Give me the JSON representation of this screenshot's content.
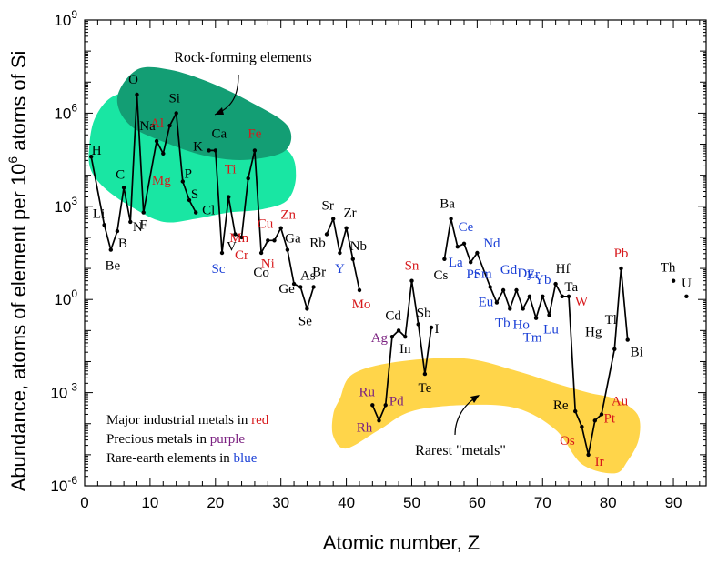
{
  "colors": {
    "red": "#d7191c",
    "purple": "#7b2181",
    "blue": "#1a3fd6",
    "black": "#000000",
    "rock_light": "#19e6a3",
    "rock_dark": "#139e74",
    "rare_yellow": "#ffd54a"
  },
  "chart_data": {
    "type": "line",
    "xlabel": "Atomic number, Z",
    "ylabel_main": "Abundance, atoms of element per 10",
    "ylabel_sup": "6",
    "ylabel_end": " atoms of Si",
    "xlim": [
      0,
      95
    ],
    "ylim_log10": [
      -6,
      9
    ],
    "x_ticks": [
      "0",
      "10",
      "20",
      "30",
      "40",
      "50",
      "60",
      "70",
      "80",
      "90"
    ],
    "y_ticks": [
      {
        "base": "10",
        "exp": "-6",
        "value": -6
      },
      {
        "base": "10",
        "exp": "-3",
        "value": -3
      },
      {
        "base": "10",
        "exp": "0",
        "value": 0
      },
      {
        "base": "10",
        "exp": "3",
        "value": 3
      },
      {
        "base": "10",
        "exp": "6",
        "value": 6
      },
      {
        "base": "10",
        "exp": "9",
        "value": 9
      }
    ],
    "scale_y": "log",
    "groups": [
      {
        "label": "Rock-forming elements"
      },
      {
        "label": "Rarest \"metals\""
      }
    ],
    "legend_notes": [
      {
        "text": "Major industrial metals in ",
        "highlight": "red",
        "cls": "red"
      },
      {
        "text": "Precious metals in ",
        "highlight": "purple",
        "cls": "purple"
      },
      {
        "text": "Rare-earth elements in ",
        "highlight": "blue",
        "cls": "blue"
      }
    ],
    "segments": [
      [
        [
          1,
          4.6
        ],
        [
          3,
          2.4
        ],
        [
          4,
          1.6
        ],
        [
          5,
          2.2
        ],
        [
          6,
          3.6
        ],
        [
          7,
          2.5
        ],
        [
          8,
          6.6
        ],
        [
          9,
          2.8
        ],
        [
          11,
          5.1
        ],
        [
          12,
          4.7
        ],
        [
          13,
          5.6
        ],
        [
          14,
          6.0
        ],
        [
          15,
          3.8
        ],
        [
          16,
          3.2
        ],
        [
          17,
          2.8
        ]
      ],
      [
        [
          19,
          4.8
        ],
        [
          20,
          4.8
        ],
        [
          21,
          1.5
        ],
        [
          22,
          3.3
        ],
        [
          23,
          2.1
        ],
        [
          24,
          2.0
        ],
        [
          25,
          3.9
        ],
        [
          26,
          4.8
        ],
        [
          27,
          1.5
        ],
        [
          28,
          1.9
        ],
        [
          29,
          1.9
        ],
        [
          30,
          2.3
        ],
        [
          31,
          1.6
        ],
        [
          32,
          0.5
        ],
        [
          33,
          0.4
        ],
        [
          34,
          -0.3
        ],
        [
          35,
          0.4
        ]
      ],
      [
        [
          37,
          2.1
        ],
        [
          38,
          2.6
        ],
        [
          39,
          1.5
        ],
        [
          40,
          2.3
        ],
        [
          41,
          1.3
        ],
        [
          42,
          0.3
        ]
      ],
      [
        [
          44,
          -3.4
        ],
        [
          45,
          -3.9
        ],
        [
          46,
          -3.4
        ],
        [
          47,
          -1.2
        ],
        [
          48,
          -1.0
        ],
        [
          49,
          -1.2
        ],
        [
          50,
          0.6
        ],
        [
          51,
          -0.8
        ],
        [
          52,
          -2.4
        ],
        [
          53,
          -0.9
        ]
      ],
      [
        [
          55,
          1.3
        ],
        [
          56,
          2.6
        ],
        [
          57,
          1.7
        ],
        [
          58,
          1.8
        ],
        [
          59,
          1.2
        ],
        [
          60,
          1.5
        ],
        [
          62,
          0.4
        ],
        [
          63,
          -0.1
        ],
        [
          64,
          0.3
        ],
        [
          65,
          -0.3
        ],
        [
          66,
          0.3
        ],
        [
          67,
          -0.3
        ],
        [
          68,
          0.1
        ],
        [
          69,
          -0.6
        ],
        [
          70,
          0.1
        ],
        [
          71,
          -0.5
        ],
        [
          72,
          0.5
        ],
        [
          73,
          0.1
        ],
        [
          74,
          0.1
        ],
        [
          75,
          -3.6
        ],
        [
          76,
          -4.1
        ],
        [
          77,
          -5.0
        ],
        [
          78,
          -3.9
        ],
        [
          79,
          -3.7
        ],
        [
          81,
          -1.6
        ],
        [
          82,
          1.0
        ],
        [
          83,
          -1.3
        ]
      ],
      [
        [
          90,
          0.6
        ]
      ],
      [
        [
          92,
          0.1
        ]
      ]
    ],
    "elements": [
      {
        "sym": "H",
        "z": 1,
        "v": 4.6,
        "c": "black",
        "dx": 6,
        "dy": -2
      },
      {
        "sym": "Li",
        "z": 3,
        "v": 2.4,
        "c": "black",
        "dx": -6,
        "dy": -8
      },
      {
        "sym": "Be",
        "z": 4,
        "v": 1.6,
        "c": "black",
        "dx": 2,
        "dy": 22
      },
      {
        "sym": "B",
        "z": 5,
        "v": 2.2,
        "c": "black",
        "dx": 6,
        "dy": 18
      },
      {
        "sym": "C",
        "z": 6,
        "v": 3.6,
        "c": "black",
        "dx": -4,
        "dy": -10
      },
      {
        "sym": "N",
        "z": 7,
        "v": 2.5,
        "c": "black",
        "dx": 8,
        "dy": 10
      },
      {
        "sym": "O",
        "z": 8,
        "v": 6.6,
        "c": "black",
        "dx": -4,
        "dy": -12
      },
      {
        "sym": "F",
        "z": 9,
        "v": 2.8,
        "c": "black",
        "dx": 0,
        "dy": 18
      },
      {
        "sym": "Na",
        "z": 11,
        "v": 5.1,
        "c": "black",
        "dx": -10,
        "dy": -12
      },
      {
        "sym": "Mg",
        "z": 12,
        "v": 4.7,
        "c": "red",
        "dx": -2,
        "dy": 34
      },
      {
        "sym": "Al",
        "z": 13,
        "v": 5.6,
        "c": "red",
        "dx": -14,
        "dy": 2
      },
      {
        "sym": "Si",
        "z": 14,
        "v": 6.0,
        "c": "black",
        "dx": -2,
        "dy": -12
      },
      {
        "sym": "P",
        "z": 15,
        "v": 3.8,
        "c": "black",
        "dx": 6,
        "dy": -4
      },
      {
        "sym": "S",
        "z": 16,
        "v": 3.2,
        "c": "black",
        "dx": 6,
        "dy": -2
      },
      {
        "sym": "Cl",
        "z": 17,
        "v": 2.8,
        "c": "black",
        "dx": 14,
        "dy": 2
      },
      {
        "sym": "K",
        "z": 19,
        "v": 4.8,
        "c": "black",
        "dx": -12,
        "dy": 0
      },
      {
        "sym": "Ca",
        "z": 20,
        "v": 4.8,
        "c": "black",
        "dx": 4,
        "dy": -14
      },
      {
        "sym": "Sc",
        "z": 21,
        "v": 1.5,
        "c": "blue",
        "dx": -4,
        "dy": 22
      },
      {
        "sym": "Ti",
        "z": 22,
        "v": 3.3,
        "c": "red",
        "dx": 2,
        "dy": -26
      },
      {
        "sym": "V",
        "z": 23,
        "v": 2.1,
        "c": "black",
        "dx": -4,
        "dy": 18
      },
      {
        "sym": "Cr",
        "z": 24,
        "v": 2.0,
        "c": "red",
        "dx": 0,
        "dy": 24
      },
      {
        "sym": "Mn",
        "z": 25,
        "v": 3.9,
        "c": "red",
        "dx": -10,
        "dy": 70
      },
      {
        "sym": "Fe",
        "z": 26,
        "v": 4.8,
        "c": "red",
        "dx": 0,
        "dy": -14
      },
      {
        "sym": "Co",
        "z": 27,
        "v": 1.5,
        "c": "black",
        "dx": 0,
        "dy": 26
      },
      {
        "sym": "Ni",
        "z": 28,
        "v": 1.9,
        "c": "red",
        "dx": 0,
        "dy": 30
      },
      {
        "sym": "Cu",
        "z": 29,
        "v": 1.9,
        "c": "red",
        "dx": -10,
        "dy": -14
      },
      {
        "sym": "Zn",
        "z": 30,
        "v": 2.3,
        "c": "red",
        "dx": 8,
        "dy": -10
      },
      {
        "sym": "Ga",
        "z": 31,
        "v": 1.6,
        "c": "black",
        "dx": 6,
        "dy": -8
      },
      {
        "sym": "Ge",
        "z": 32,
        "v": 0.5,
        "c": "black",
        "dx": -8,
        "dy": 10
      },
      {
        "sym": "As",
        "z": 33,
        "v": 0.4,
        "c": "black",
        "dx": 8,
        "dy": -8
      },
      {
        "sym": "Se",
        "z": 34,
        "v": -0.3,
        "c": "black",
        "dx": -2,
        "dy": 18
      },
      {
        "sym": "Br",
        "z": 35,
        "v": 0.4,
        "c": "black",
        "dx": 6,
        "dy": -12
      },
      {
        "sym": "Rb",
        "z": 37,
        "v": 2.1,
        "c": "black",
        "dx": -10,
        "dy": 14
      },
      {
        "sym": "Sr",
        "z": 38,
        "v": 2.6,
        "c": "black",
        "dx": -6,
        "dy": -10
      },
      {
        "sym": "Y",
        "z": 39,
        "v": 1.5,
        "c": "blue",
        "dx": 0,
        "dy": 22
      },
      {
        "sym": "Zr",
        "z": 40,
        "v": 2.3,
        "c": "black",
        "dx": 4,
        "dy": -12
      },
      {
        "sym": "Nb",
        "z": 41,
        "v": 1.3,
        "c": "black",
        "dx": 6,
        "dy": -10
      },
      {
        "sym": "Mo",
        "z": 42,
        "v": 0.3,
        "c": "red",
        "dx": 2,
        "dy": 20
      },
      {
        "sym": "Ru",
        "z": 44,
        "v": -3.4,
        "c": "purple",
        "dx": -6,
        "dy": -10
      },
      {
        "sym": "Rh",
        "z": 45,
        "v": -3.9,
        "c": "purple",
        "dx": -16,
        "dy": 12
      },
      {
        "sym": "Pd",
        "z": 46,
        "v": -3.4,
        "c": "purple",
        "dx": 12,
        "dy": 0
      },
      {
        "sym": "Ag",
        "z": 47,
        "v": -1.2,
        "c": "purple",
        "dx": -14,
        "dy": 6
      },
      {
        "sym": "Cd",
        "z": 48,
        "v": -1.0,
        "c": "black",
        "dx": -6,
        "dy": -12
      },
      {
        "sym": "In",
        "z": 49,
        "v": -1.2,
        "c": "black",
        "dx": 0,
        "dy": 18
      },
      {
        "sym": "Sn",
        "z": 50,
        "v": 0.6,
        "c": "red",
        "dx": 0,
        "dy": -12
      },
      {
        "sym": "Sb",
        "z": 51,
        "v": -0.8,
        "c": "black",
        "dx": 6,
        "dy": -8
      },
      {
        "sym": "Te",
        "z": 52,
        "v": -2.4,
        "c": "black",
        "dx": 0,
        "dy": 20
      },
      {
        "sym": "I",
        "z": 53,
        "v": -0.9,
        "c": "black",
        "dx": 6,
        "dy": 6
      },
      {
        "sym": "Cs",
        "z": 55,
        "v": 1.3,
        "c": "black",
        "dx": -4,
        "dy": 22
      },
      {
        "sym": "Ba",
        "z": 56,
        "v": 2.6,
        "c": "black",
        "dx": -4,
        "dy": -12
      },
      {
        "sym": "La",
        "z": 57,
        "v": 1.7,
        "c": "blue",
        "dx": -2,
        "dy": 22
      },
      {
        "sym": "Ce",
        "z": 58,
        "v": 1.8,
        "c": "blue",
        "dx": 2,
        "dy": -14
      },
      {
        "sym": "Pr",
        "z": 59,
        "v": 1.2,
        "c": "blue",
        "dx": 2,
        "dy": 18
      },
      {
        "sym": "Nd",
        "z": 60,
        "v": 1.5,
        "c": "blue",
        "dx": 16,
        "dy": -6
      },
      {
        "sym": "Sm",
        "z": 62,
        "v": 0.4,
        "c": "blue",
        "dx": -8,
        "dy": -10
      },
      {
        "sym": "Eu",
        "z": 63,
        "v": -0.1,
        "c": "blue",
        "dx": -12,
        "dy": 4
      },
      {
        "sym": "Gd",
        "z": 64,
        "v": 0.3,
        "c": "blue",
        "dx": 6,
        "dy": -18
      },
      {
        "sym": "Tb",
        "z": 65,
        "v": -0.3,
        "c": "blue",
        "dx": -8,
        "dy": 20
      },
      {
        "sym": "Dy",
        "z": 66,
        "v": 0.3,
        "c": "blue",
        "dx": 10,
        "dy": -14
      },
      {
        "sym": "Ho",
        "z": 67,
        "v": -0.3,
        "c": "blue",
        "dx": -2,
        "dy": 22
      },
      {
        "sym": "Er",
        "z": 68,
        "v": 0.1,
        "c": "blue",
        "dx": 4,
        "dy": -20
      },
      {
        "sym": "Tm",
        "z": 69,
        "v": -0.6,
        "c": "blue",
        "dx": -4,
        "dy": 26
      },
      {
        "sym": "Yb",
        "z": 70,
        "v": 0.1,
        "c": "blue",
        "dx": 0,
        "dy": -14
      },
      {
        "sym": "Lu",
        "z": 71,
        "v": -0.5,
        "c": "blue",
        "dx": 2,
        "dy": 20
      },
      {
        "sym": "Hf",
        "z": 72,
        "v": 0.5,
        "c": "black",
        "dx": 8,
        "dy": -12
      },
      {
        "sym": "Ta",
        "z": 73,
        "v": 0.1,
        "c": "black",
        "dx": 10,
        "dy": -6
      },
      {
        "sym": "W",
        "z": 74,
        "v": 0.1,
        "c": "red",
        "dx": 14,
        "dy": 10
      },
      {
        "sym": "Re",
        "z": 75,
        "v": -3.6,
        "c": "black",
        "dx": -16,
        "dy": -2
      },
      {
        "sym": "Os",
        "z": 76,
        "v": -4.1,
        "c": "red",
        "dx": -16,
        "dy": 20
      },
      {
        "sym": "Ir",
        "z": 77,
        "v": -5.0,
        "c": "red",
        "dx": 12,
        "dy": 12
      },
      {
        "sym": "Pt",
        "z": 78,
        "v": -3.9,
        "c": "red",
        "dx": 16,
        "dy": 2
      },
      {
        "sym": "Au",
        "z": 79,
        "v": -3.7,
        "c": "red",
        "dx": 20,
        "dy": -10
      },
      {
        "sym": "Hg",
        "z": 80,
        "v": -1.3,
        "c": "black",
        "dx": -16,
        "dy": -4
      },
      {
        "sym": "Tl",
        "z": 81,
        "v": -1.6,
        "c": "black",
        "dx": -4,
        "dy": -28
      },
      {
        "sym": "Pb",
        "z": 82,
        "v": 1.0,
        "c": "red",
        "dx": 0,
        "dy": -12
      },
      {
        "sym": "Bi",
        "z": 83,
        "v": -1.3,
        "c": "black",
        "dx": 10,
        "dy": 18
      },
      {
        "sym": "Th",
        "z": 90,
        "v": 0.6,
        "c": "black",
        "dx": -6,
        "dy": -10
      },
      {
        "sym": "U",
        "z": 92,
        "v": 0.1,
        "c": "black",
        "dx": 0,
        "dy": -10
      }
    ]
  }
}
